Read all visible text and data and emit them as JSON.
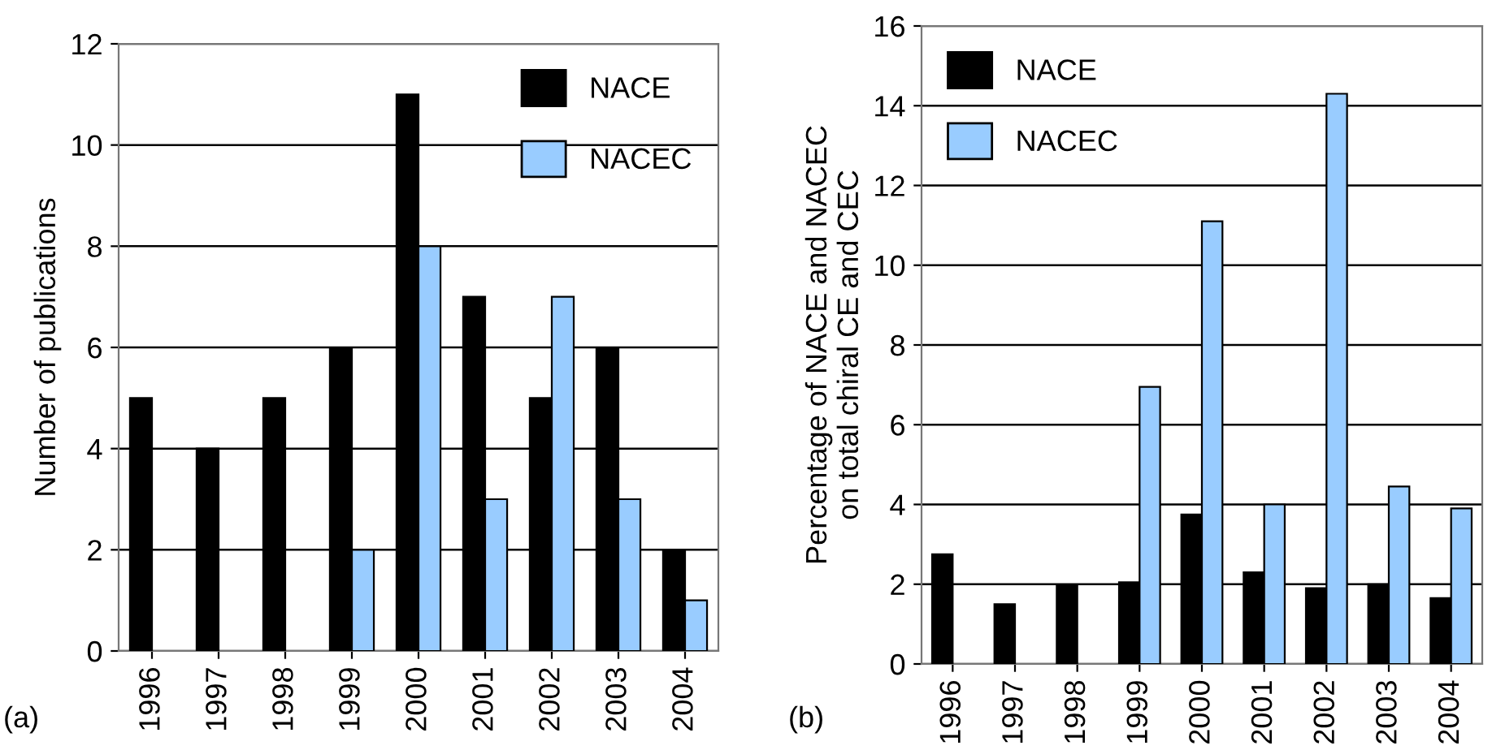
{
  "chart_data": [
    {
      "type": "bar",
      "ylabel": "Number of publications",
      "categories": [
        "1996",
        "1997",
        "1998",
        "1999",
        "2000",
        "2001",
        "2002",
        "2003",
        "2004"
      ],
      "series": [
        {
          "name": "NACE",
          "color": "#000000",
          "values": [
            5,
            4,
            5,
            6,
            11,
            7,
            5,
            6,
            2
          ]
        },
        {
          "name": "NACEC",
          "color": "#99ccff",
          "values": [
            null,
            null,
            null,
            2,
            8,
            3,
            7,
            3,
            1
          ]
        }
      ],
      "ylim": [
        0,
        12
      ],
      "yticks": [
        0,
        2,
        4,
        6,
        8,
        10,
        12
      ],
      "grid": "y",
      "legend": "top right",
      "annotations": [
        "(a)"
      ]
    },
    {
      "type": "bar",
      "ylabel": "Percentage of NACE and NACEC\non total chiral CE and CEC",
      "categories": [
        "1996",
        "1997",
        "1998",
        "1999",
        "2000",
        "2001",
        "2002",
        "2003",
        "2004"
      ],
      "series": [
        {
          "name": "NACE",
          "color": "#000000",
          "values": [
            2.75,
            1.5,
            1.95,
            2.05,
            3.75,
            2.3,
            1.9,
            2.0,
            1.65
          ]
        },
        {
          "name": "NACEC",
          "color": "#99ccff",
          "values": [
            null,
            null,
            null,
            6.95,
            11.1,
            4.0,
            14.3,
            4.45,
            3.9
          ]
        }
      ],
      "ylim": [
        0,
        16
      ],
      "yticks": [
        0,
        2,
        4,
        6,
        8,
        10,
        12,
        14,
        16
      ],
      "grid": "y",
      "legend": "top left",
      "annotations": [
        "(b)"
      ]
    }
  ]
}
